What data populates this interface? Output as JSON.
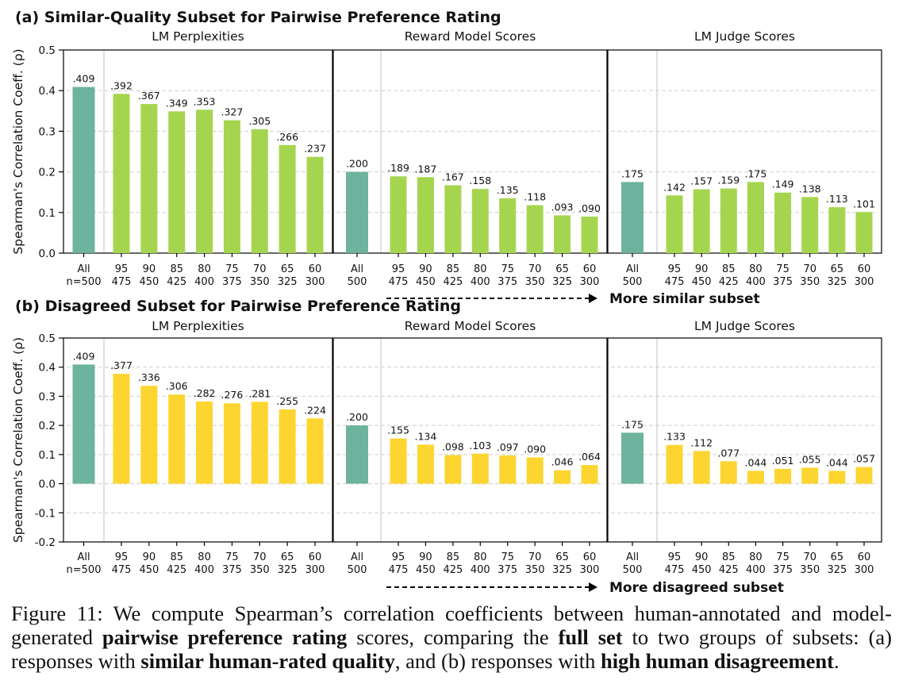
{
  "chart_data": [
    {
      "type": "bar",
      "title": "(a) Similar-Quality Subset for Pairwise Preference Rating",
      "ylabel": "Spearman's Correlation Coeff. (ρ)",
      "ylim": [
        0,
        0.5
      ],
      "yticks": [
        "0.0",
        "0.1",
        "0.2",
        "0.3",
        "0.4",
        "0.5"
      ],
      "ytick_values": [
        0,
        0.1,
        0.2,
        0.3,
        0.4,
        0.5
      ],
      "grid": true,
      "arrow_label": "More similar subset",
      "subset_color": "#a5d54e",
      "all_color": "#6db39d",
      "panels": [
        {
          "title": "LM Perplexities",
          "categories": [
            [
              "All",
              "n=500"
            ],
            [
              "95",
              "475"
            ],
            [
              "90",
              "450"
            ],
            [
              "85",
              "425"
            ],
            [
              "80",
              "400"
            ],
            [
              "75",
              "375"
            ],
            [
              "70",
              "350"
            ],
            [
              "65",
              "325"
            ],
            [
              "60",
              "300"
            ]
          ],
          "values": [
            0.409,
            0.392,
            0.367,
            0.349,
            0.353,
            0.327,
            0.305,
            0.266,
            0.237
          ],
          "labels": [
            ".409",
            ".392",
            ".367",
            ".349",
            ".353",
            ".327",
            ".305",
            ".266",
            ".237"
          ]
        },
        {
          "title": "Reward Model Scores",
          "categories": [
            [
              "All",
              "500"
            ],
            [
              "95",
              "475"
            ],
            [
              "90",
              "450"
            ],
            [
              "85",
              "425"
            ],
            [
              "80",
              "400"
            ],
            [
              "75",
              "375"
            ],
            [
              "70",
              "350"
            ],
            [
              "65",
              "325"
            ],
            [
              "60",
              "300"
            ]
          ],
          "values": [
            0.2,
            0.189,
            0.187,
            0.167,
            0.158,
            0.135,
            0.118,
            0.093,
            0.09
          ],
          "labels": [
            ".200",
            ".189",
            ".187",
            ".167",
            ".158",
            ".135",
            ".118",
            ".093",
            ".090"
          ]
        },
        {
          "title": "LM Judge Scores",
          "categories": [
            [
              "All",
              "500"
            ],
            [
              "95",
              "475"
            ],
            [
              "90",
              "450"
            ],
            [
              "85",
              "425"
            ],
            [
              "80",
              "400"
            ],
            [
              "75",
              "375"
            ],
            [
              "70",
              "350"
            ],
            [
              "65",
              "325"
            ],
            [
              "60",
              "300"
            ]
          ],
          "values": [
            0.175,
            0.142,
            0.157,
            0.159,
            0.175,
            0.149,
            0.138,
            0.113,
            0.101
          ],
          "labels": [
            ".175",
            ".142",
            ".157",
            ".159",
            ".175",
            ".149",
            ".138",
            ".113",
            ".101"
          ]
        }
      ]
    },
    {
      "type": "bar",
      "title": "(b) Disagreed Subset for Pairwise Preference Rating",
      "ylabel": "Spearman's Correlation Coeff. (ρ)",
      "ylim": [
        -0.2,
        0.5
      ],
      "yticks": [
        "-0.2",
        "-0.1",
        "0.0",
        "0.1",
        "0.2",
        "0.3",
        "0.4",
        "0.5"
      ],
      "ytick_values": [
        -0.2,
        -0.1,
        0,
        0.1,
        0.2,
        0.3,
        0.4,
        0.5
      ],
      "grid": true,
      "arrow_label": "More disagreed subset",
      "subset_color": "#fdd530",
      "all_color": "#6db39d",
      "panels": [
        {
          "title": "LM Perplexities",
          "categories": [
            [
              "All",
              "n=500"
            ],
            [
              "95",
              "475"
            ],
            [
              "90",
              "450"
            ],
            [
              "85",
              "425"
            ],
            [
              "80",
              "400"
            ],
            [
              "75",
              "375"
            ],
            [
              "70",
              "350"
            ],
            [
              "65",
              "325"
            ],
            [
              "60",
              "300"
            ]
          ],
          "values": [
            0.409,
            0.377,
            0.336,
            0.306,
            0.282,
            0.276,
            0.281,
            0.255,
            0.224
          ],
          "labels": [
            ".409",
            ".377",
            ".336",
            ".306",
            ".282",
            ".276",
            ".281",
            ".255",
            ".224"
          ]
        },
        {
          "title": "Reward Model Scores",
          "categories": [
            [
              "All",
              "500"
            ],
            [
              "95",
              "475"
            ],
            [
              "90",
              "450"
            ],
            [
              "85",
              "425"
            ],
            [
              "80",
              "400"
            ],
            [
              "75",
              "375"
            ],
            [
              "70",
              "350"
            ],
            [
              "65",
              "325"
            ],
            [
              "60",
              "300"
            ]
          ],
          "values": [
            0.2,
            0.155,
            0.134,
            0.098,
            0.103,
            0.097,
            0.09,
            0.046,
            0.064
          ],
          "labels": [
            ".200",
            ".155",
            ".134",
            ".098",
            ".103",
            ".097",
            ".090",
            ".046",
            ".064"
          ]
        },
        {
          "title": "LM Judge Scores",
          "categories": [
            [
              "All",
              "500"
            ],
            [
              "95",
              "475"
            ],
            [
              "90",
              "450"
            ],
            [
              "85",
              "425"
            ],
            [
              "80",
              "400"
            ],
            [
              "75",
              "375"
            ],
            [
              "70",
              "350"
            ],
            [
              "65",
              "325"
            ],
            [
              "60",
              "300"
            ]
          ],
          "values": [
            0.175,
            0.133,
            0.112,
            0.077,
            0.044,
            0.051,
            0.055,
            0.044,
            0.057
          ],
          "labels": [
            ".175",
            ".133",
            ".112",
            ".077",
            ".044",
            ".051",
            ".055",
            ".044",
            ".057"
          ]
        }
      ]
    }
  ],
  "caption": {
    "prefix": "Figure 11: We compute Spearman’s correlation coefficients between human-annotated and model-generated ",
    "bold1": "pairwise preference rating",
    "mid1": " scores, comparing the ",
    "bold2": "full set",
    "mid2": " to two groups of subsets: (a) responses with ",
    "bold3": "similar human-rated quality",
    "mid3": ", and (b) responses with ",
    "bold4": "high human disagreement",
    "suffix": "."
  }
}
